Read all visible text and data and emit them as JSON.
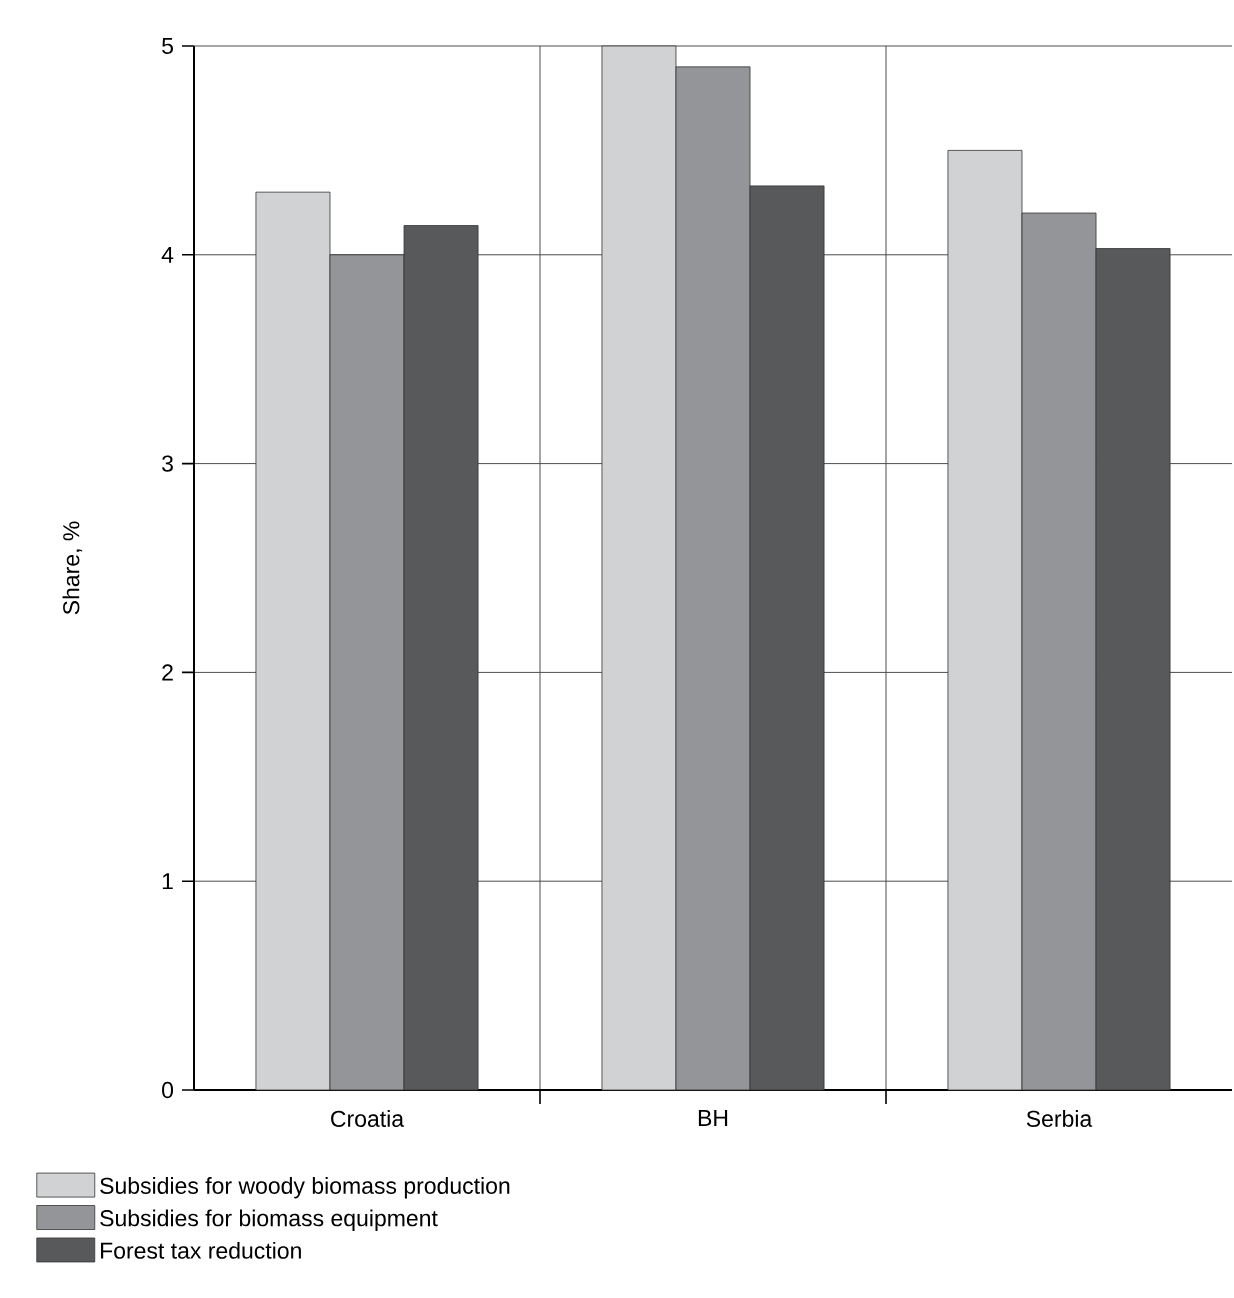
{
  "chart_data": {
    "type": "bar",
    "ylabel": "Share, %",
    "categories": [
      "Croatia",
      "BH",
      "Serbia"
    ],
    "series": [
      {
        "name": "Subsidies for woody biomass production",
        "color": "#d1d2d4",
        "values": [
          4.3,
          5.0,
          4.5
        ]
      },
      {
        "name": "Subsidies for biomass equipment",
        "color": "#939598",
        "values": [
          4.0,
          4.9,
          4.2
        ]
      },
      {
        "name": "Forest tax reduction",
        "color": "#58595b",
        "values": [
          4.14,
          4.33,
          4.03
        ]
      }
    ],
    "ylim": [
      0,
      5
    ],
    "yticks": [
      0,
      1,
      2,
      3,
      4,
      5
    ],
    "grid": true,
    "legend": "bottom"
  }
}
